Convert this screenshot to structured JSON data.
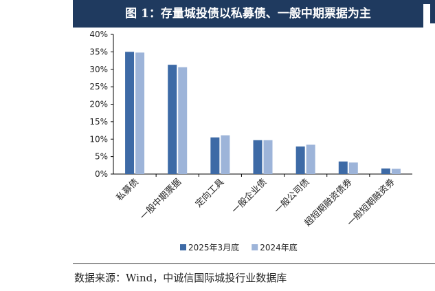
{
  "title": "图 1：存量城投债以私募债、一般中期票据为主",
  "source": "数据来源：Wind，中诚信国际城投行业数据库",
  "colors": {
    "title_bg": "#1f3a5f",
    "series_2025": "#3d6aa6",
    "series_2024": "#9db4d9"
  },
  "chart_data": {
    "type": "bar",
    "categories": [
      "私募债",
      "一般中期票据",
      "定向工具",
      "一般企业债",
      "一般公司债",
      "超短期融资债券",
      "一般短期融资券"
    ],
    "series": [
      {
        "name": "2025年3月底",
        "values": [
          35.0,
          31.3,
          10.5,
          9.7,
          7.9,
          3.6,
          1.6
        ]
      },
      {
        "name": "2024年底",
        "values": [
          34.8,
          30.6,
          11.1,
          9.7,
          8.4,
          3.3,
          1.5
        ]
      }
    ],
    "ylim": [
      0,
      40
    ],
    "yticks": [
      "0%",
      "5%",
      "10%",
      "15%",
      "20%",
      "25%",
      "30%",
      "35%",
      "40%"
    ],
    "grid": false,
    "legend_position": "bottom"
  }
}
